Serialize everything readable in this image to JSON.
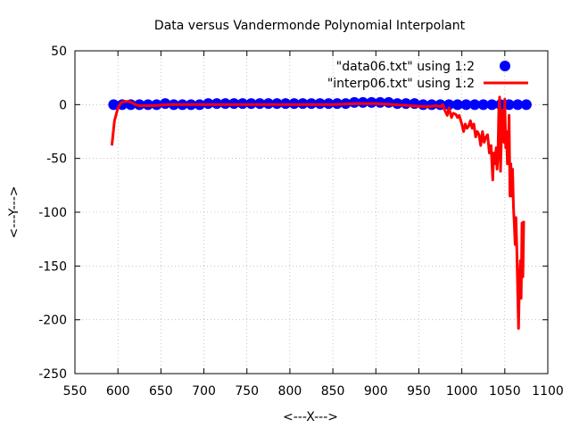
{
  "chart_data": {
    "type": "line",
    "title": "Data versus Vandermonde Polynomial Interpolant",
    "xlabel": "<---X--->",
    "ylabel": "<---Y--->",
    "xlim": [
      550,
      1100
    ],
    "ylim": [
      -250,
      50
    ],
    "xticks": [
      550,
      600,
      650,
      700,
      750,
      800,
      850,
      900,
      950,
      1000,
      1050,
      1100
    ],
    "yticks": [
      -250,
      -200,
      -150,
      -100,
      -50,
      0,
      50
    ],
    "xtick_labels": [
      "550",
      "600",
      "650",
      "700",
      "750",
      "800",
      "850",
      "900",
      "950",
      "1000",
      "1050",
      "1100"
    ],
    "ytick_labels": [
      "-250",
      "-200",
      "-150",
      "-100",
      "-50",
      "0",
      "50"
    ],
    "grid": true,
    "legend_position": "top-right",
    "series": [
      {
        "name": "\"data06.txt\" using 1:2",
        "style": "points",
        "color": "#0000ff",
        "x": [
          595,
          605,
          615,
          625,
          635,
          645,
          655,
          665,
          675,
          685,
          695,
          705,
          715,
          725,
          735,
          745,
          755,
          765,
          775,
          785,
          795,
          805,
          815,
          825,
          835,
          845,
          855,
          865,
          875,
          885,
          895,
          905,
          915,
          925,
          935,
          945,
          955,
          965,
          975,
          985,
          995,
          1005,
          1015,
          1025,
          1035,
          1045,
          1055,
          1065,
          1075
        ],
        "y": [
          0,
          0,
          0,
          0,
          0,
          0,
          1,
          0,
          0,
          0,
          0,
          1,
          1,
          1,
          1,
          1,
          1,
          1,
          1,
          1,
          1,
          1,
          1,
          1,
          1,
          1,
          1,
          1,
          2,
          2,
          2,
          2,
          2,
          1,
          1,
          1,
          0,
          0,
          0,
          0,
          0,
          0,
          0,
          0,
          0,
          0,
          0,
          0,
          0
        ]
      },
      {
        "name": "\"interp06.txt\" using 1:2",
        "style": "line",
        "color": "#ff0000",
        "x": [
          593,
          596,
          600,
          604,
          608,
          612,
          616,
          620,
          625,
          630,
          640,
          660,
          680,
          700,
          750,
          800,
          850,
          880,
          900,
          920,
          940,
          960,
          970,
          975,
          978,
          980,
          983,
          985,
          988,
          990,
          993,
          995,
          997,
          1000,
          1002,
          1004,
          1006,
          1008,
          1010,
          1012,
          1014,
          1016,
          1018,
          1020,
          1022,
          1024,
          1026,
          1028,
          1030,
          1032,
          1034,
          1036,
          1037,
          1038,
          1040,
          1041,
          1042,
          1043,
          1044,
          1045,
          1046,
          1047,
          1048,
          1049,
          1050,
          1051,
          1052,
          1053,
          1054,
          1055,
          1056,
          1057,
          1058,
          1059,
          1060,
          1061,
          1062,
          1063,
          1064,
          1065,
          1066,
          1067,
          1068,
          1069,
          1070,
          1071,
          1072
        ],
        "y": [
          -38,
          -15,
          -3,
          2,
          3,
          3,
          2,
          0,
          -1,
          -1,
          -1,
          0,
          0,
          0,
          0,
          0,
          0,
          1,
          1,
          0,
          -1,
          -2,
          -1,
          -2,
          0,
          -5,
          -10,
          -3,
          -12,
          -8,
          -9,
          -12,
          -10,
          -18,
          -25,
          -18,
          -22,
          -20,
          -15,
          -22,
          -18,
          -30,
          -25,
          -28,
          -38,
          -25,
          -35,
          -30,
          -28,
          -45,
          -38,
          -70,
          -45,
          -55,
          -40,
          -60,
          -48,
          -5,
          7,
          -62,
          -30,
          -5,
          -20,
          -35,
          5,
          -40,
          -25,
          -55,
          -45,
          -10,
          -85,
          -55,
          -85,
          -60,
          -95,
          -110,
          -130,
          -105,
          -135,
          -175,
          -208,
          -165,
          -145,
          -180,
          -110,
          -160,
          -108
        ]
      }
    ]
  }
}
